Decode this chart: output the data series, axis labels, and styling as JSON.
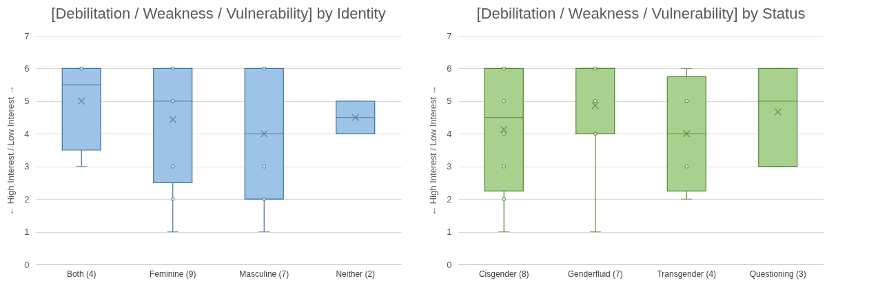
{
  "chart_data": [
    {
      "type": "box",
      "title": "[Debilitation / Weakness / Vulnerability] by Identity",
      "ylabel": "← High Interest / Low Interest →",
      "categories": [
        "Both (4)",
        "Feminine (9)",
        "Masculine (7)",
        "Neither (2)"
      ],
      "ylim": [
        0,
        7
      ],
      "yticks": [
        0,
        1,
        2,
        3,
        4,
        5,
        6,
        7
      ],
      "grid": "y",
      "series": [
        {
          "type": "box",
          "color": "#9dc3e6",
          "boxes": [
            {
              "low": 3,
              "q1": 3.5,
              "median": 5.5,
              "q3": 6,
              "high": 6,
              "mean": 5
            },
            {
              "low": 1,
              "q1": 2.5,
              "median": 5,
              "q3": 6,
              "high": 6,
              "mean": 4.44
            },
            {
              "low": 1,
              "q1": 2,
              "median": 4,
              "q3": 6,
              "high": 6,
              "mean": 4
            },
            {
              "low": 4,
              "q1": 4,
              "median": 4.5,
              "q3": 5,
              "high": 5,
              "mean": 4.5
            }
          ]
        },
        {
          "type": "scatter",
          "color": "#41719c",
          "x": [
            "Both (4)",
            "Feminine (9)",
            "Feminine (9)",
            "Feminine (9)",
            "Feminine (9)",
            "Masculine (7)",
            "Masculine (7)",
            "Masculine (7)"
          ],
          "values": [
            6,
            6,
            5,
            3,
            2,
            6,
            3,
            2
          ]
        }
      ]
    },
    {
      "type": "box",
      "title": "[Debilitation / Weakness / Vulnerability] by Status",
      "ylabel": "← High Interest / Low Interest →",
      "categories": [
        "Cisgender (8)",
        "Genderfluid (7)",
        "Transgender (4)",
        "Questioning (3)"
      ],
      "ylim": [
        0,
        7
      ],
      "yticks": [
        0,
        1,
        2,
        3,
        4,
        5,
        6,
        7
      ],
      "grid": "y",
      "series": [
        {
          "type": "box",
          "color": "#a9d18e",
          "boxes": [
            {
              "low": 1,
              "q1": 2.25,
              "median": 4.5,
              "q3": 6,
              "high": 6,
              "mean": 4.13
            },
            {
              "low": 1,
              "q1": 4,
              "median": 6,
              "q3": 6,
              "high": 6,
              "mean": 4.86
            },
            {
              "low": 2,
              "q1": 2.25,
              "median": 4,
              "q3": 5.75,
              "high": 6,
              "mean": 4
            },
            {
              "low": 3,
              "q1": 3,
              "median": 5,
              "q3": 6,
              "high": 6,
              "mean": 4.67
            }
          ]
        },
        {
          "type": "scatter",
          "color": "#548235",
          "x": [
            "Cisgender (8)",
            "Cisgender (8)",
            "Cisgender (8)",
            "Cisgender (8)",
            "Cisgender (8)",
            "Genderfluid (7)",
            "Genderfluid (7)",
            "Genderfluid (7)",
            "Transgender (4)",
            "Transgender (4)"
          ],
          "values": [
            6,
            5,
            4,
            3,
            2,
            6,
            5,
            4,
            5,
            3
          ]
        }
      ]
    }
  ]
}
